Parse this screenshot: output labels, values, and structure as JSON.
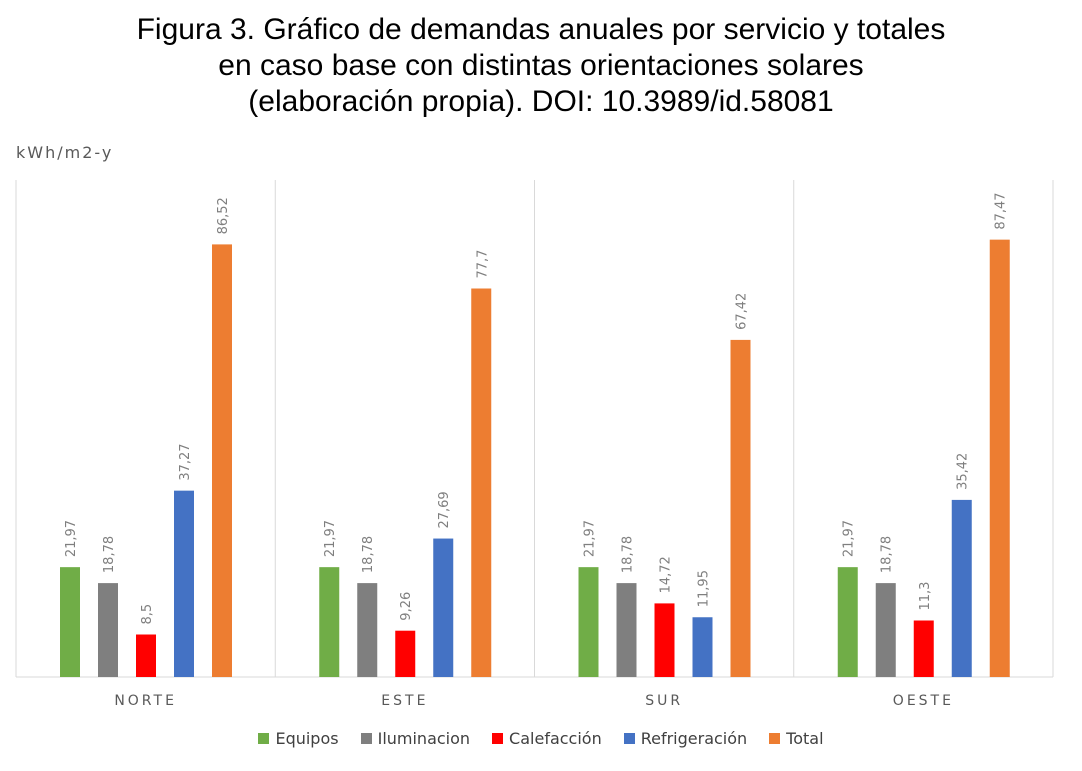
{
  "figure": {
    "title_lines": [
      "Figura 3. Gráfico de demandas anuales por servicio y totales",
      "en caso base con distintas orientaciones solares",
      "(elaboración propia). DOI: 10.3989/id.58081"
    ]
  },
  "chart_data": {
    "type": "bar",
    "ylabel": "kWh/m2-y",
    "xlabel": "",
    "ylim": [
      0,
      100
    ],
    "grid": false,
    "legend_position": "bottom",
    "categories": [
      "NORTE",
      "ESTE",
      "SUR",
      "OESTE"
    ],
    "series": [
      {
        "name": "Equipos",
        "color": "#70AD47",
        "values": [
          21.97,
          21.97,
          21.97,
          21.97
        ],
        "labels": [
          "21,97",
          "21,97",
          "21,97",
          "21,97"
        ]
      },
      {
        "name": "Iluminacion",
        "color": "#7F7F7F",
        "values": [
          18.78,
          18.78,
          18.78,
          18.78
        ],
        "labels": [
          "18,78",
          "18,78",
          "18,78",
          "18,78"
        ]
      },
      {
        "name": "Calefacción",
        "color": "#FF0000",
        "values": [
          8.5,
          9.26,
          14.72,
          11.3
        ],
        "labels": [
          "8,5",
          "9,26",
          "14,72",
          "11,3"
        ]
      },
      {
        "name": "Refrigeración",
        "color": "#4472C4",
        "values": [
          37.27,
          27.69,
          11.95,
          35.42
        ],
        "labels": [
          "37,27",
          "27,69",
          "11,95",
          "35,42"
        ]
      },
      {
        "name": "Total",
        "color": "#ED7D31",
        "values": [
          86.52,
          77.7,
          67.42,
          87.47
        ],
        "labels": [
          "86,52",
          "77,7",
          "67,42",
          "87,47"
        ]
      }
    ]
  }
}
